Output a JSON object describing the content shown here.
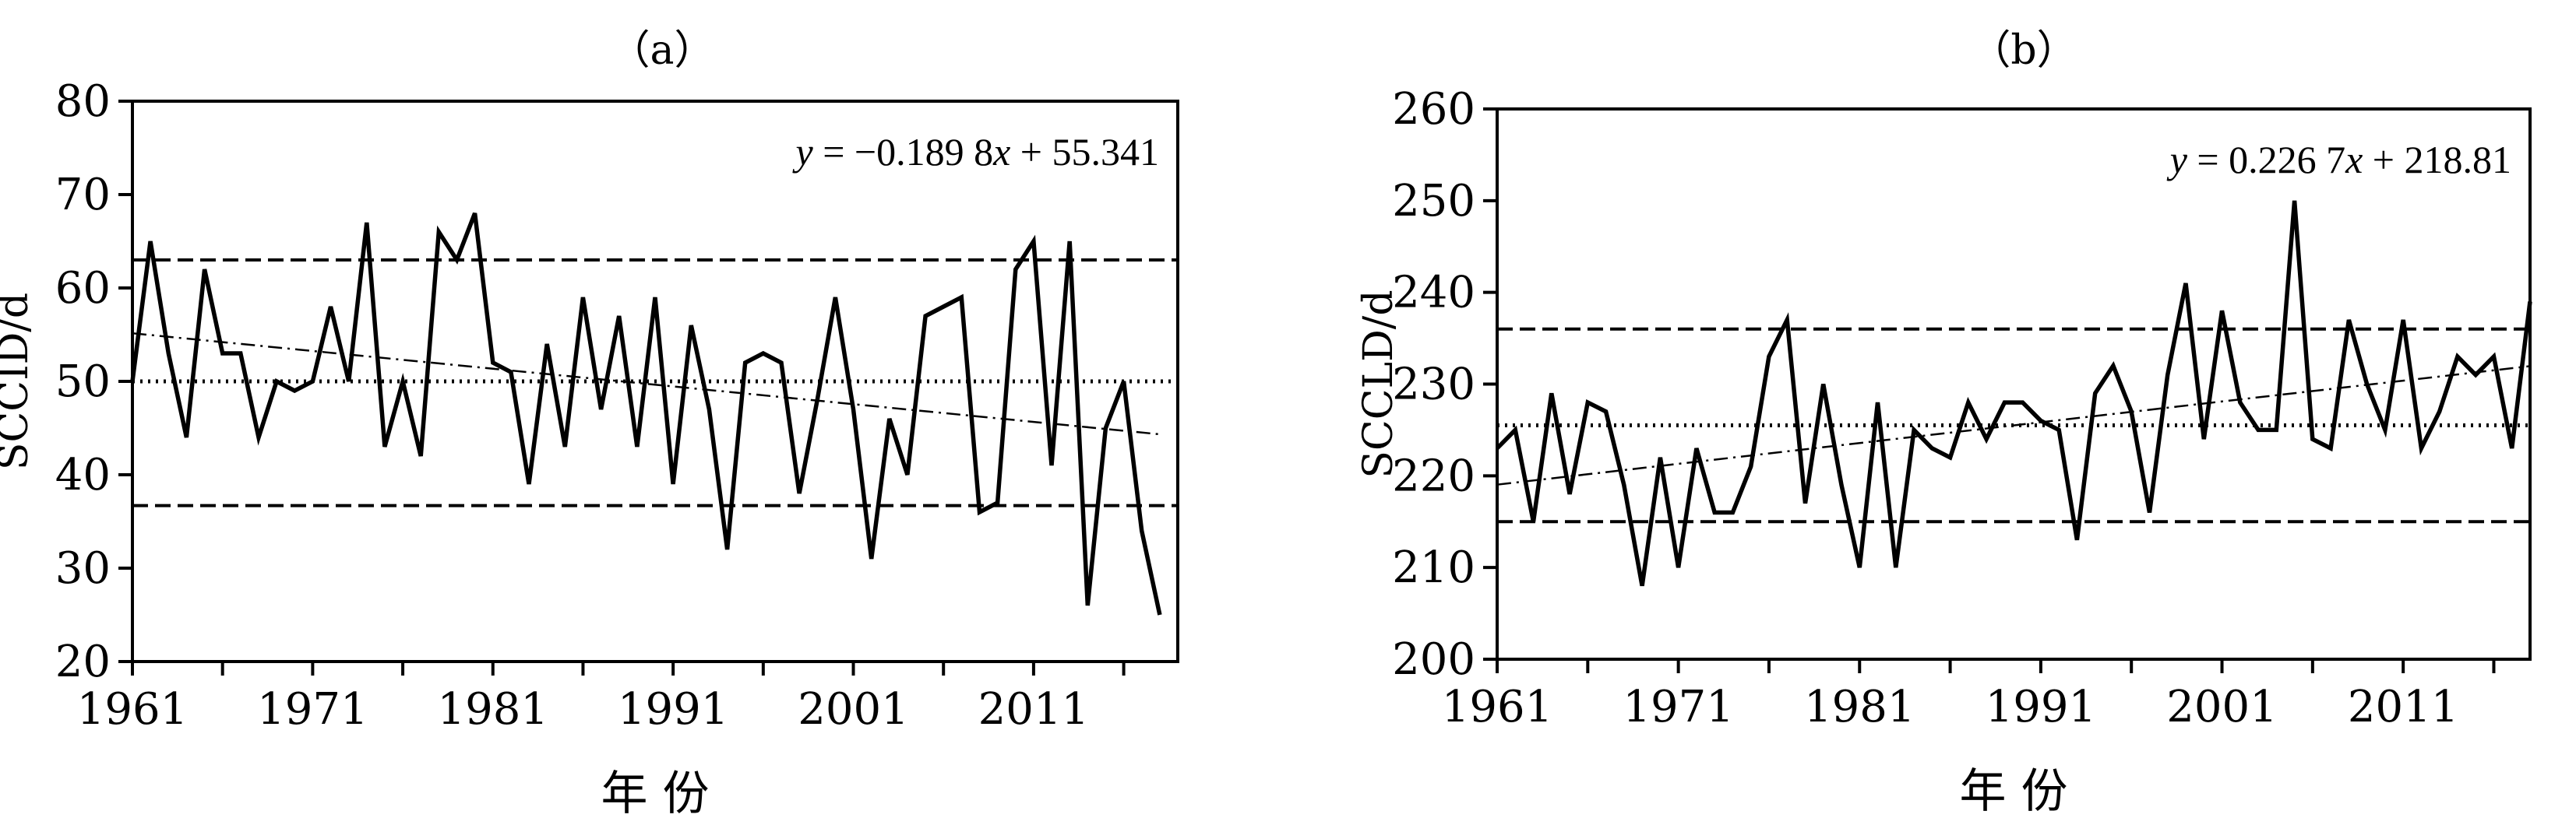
{
  "chart_data": [
    {
      "type": "line",
      "panel_label": "（a）",
      "ylabel": "SCCID/d",
      "xlabel": "年 份",
      "equation_prefix": "y",
      "equation_rest": " = −0.189 8",
      "equation_x": "x",
      "equation_tail": " + 55.341",
      "xlim": [
        1961,
        2019
      ],
      "ylim": [
        20,
        80
      ],
      "yticks": [
        20,
        30,
        40,
        50,
        60,
        70,
        80
      ],
      "xtick_labels": [
        "1961",
        "1971",
        "1981",
        "1991",
        "2001",
        "2011"
      ],
      "xticks": [
        1961,
        1971,
        1981,
        1991,
        2001,
        2011
      ],
      "minor_xticks": [
        1966,
        1976,
        1986,
        1996,
        2006,
        2016
      ],
      "mean": 50.0,
      "upper": 63.0,
      "lower": 36.7,
      "trend": {
        "slope": -0.1898,
        "intercept": 55.341
      },
      "x": [
        1961,
        1962,
        1963,
        1964,
        1965,
        1966,
        1967,
        1968,
        1969,
        1970,
        1971,
        1972,
        1973,
        1974,
        1975,
        1976,
        1977,
        1978,
        1979,
        1980,
        1981,
        1982,
        1983,
        1984,
        1985,
        1986,
        1987,
        1988,
        1989,
        1990,
        1991,
        1992,
        1993,
        1994,
        1995,
        1996,
        1997,
        1998,
        1999,
        2000,
        2001,
        2002,
        2003,
        2004,
        2005,
        2006,
        2007,
        2008,
        2009,
        2010,
        2011,
        2012,
        2013,
        2014,
        2015,
        2016,
        2017,
        2018
      ],
      "values": [
        50,
        65,
        53,
        44,
        62,
        53,
        53,
        44,
        50,
        49,
        50,
        58,
        50,
        67,
        43,
        50,
        42,
        66,
        63,
        68,
        52,
        51,
        39,
        54,
        43,
        59,
        47,
        57,
        43,
        59,
        39,
        56,
        47,
        32,
        52,
        53,
        52,
        38,
        48,
        59,
        47,
        31,
        46,
        40,
        57,
        58,
        59,
        36,
        37,
        62,
        65,
        41,
        65,
        26,
        45,
        50,
        34,
        25
      ]
    },
    {
      "type": "line",
      "panel_label": "（b）",
      "ylabel": "SCCLD/d",
      "xlabel": "年 份",
      "equation_prefix": "y",
      "equation_rest": " = 0.226 7",
      "equation_x": "x",
      "equation_tail": " + 218.81",
      "xlim": [
        1961,
        2018
      ],
      "ylim": [
        200,
        260
      ],
      "yticks": [
        200,
        210,
        220,
        230,
        240,
        250,
        260
      ],
      "xtick_labels": [
        "1961",
        "1971",
        "1981",
        "1991",
        "2001",
        "2011"
      ],
      "xticks": [
        1961,
        1971,
        1981,
        1991,
        2001,
        2011
      ],
      "minor_xticks": [
        1966,
        1976,
        1986,
        1996,
        2006,
        2016
      ],
      "mean": 225.5,
      "upper": 236.0,
      "lower": 215.0,
      "trend": {
        "slope": 0.2267,
        "intercept": 218.81
      },
      "x": [
        1961,
        1962,
        1963,
        1964,
        1965,
        1966,
        1967,
        1968,
        1969,
        1970,
        1971,
        1972,
        1973,
        1974,
        1975,
        1976,
        1977,
        1978,
        1979,
        1980,
        1981,
        1982,
        1983,
        1984,
        1985,
        1986,
        1987,
        1988,
        1989,
        1990,
        1991,
        1992,
        1993,
        1994,
        1995,
        1996,
        1997,
        1998,
        1999,
        2000,
        2001,
        2002,
        2003,
        2004,
        2005,
        2006,
        2007,
        2008,
        2009,
        2010,
        2011,
        2012,
        2013,
        2014,
        2015,
        2016,
        2017,
        2018
      ],
      "values": [
        223,
        225,
        215,
        229,
        218,
        228,
        227,
        219,
        208,
        222,
        210,
        223,
        216,
        216,
        221,
        233,
        237,
        217,
        230,
        219,
        210,
        228,
        210,
        225,
        223,
        222,
        228,
        224,
        228,
        228,
        226,
        225,
        213,
        229,
        232,
        227,
        216,
        231,
        241,
        224,
        238,
        228,
        225,
        225,
        250,
        224,
        223,
        237,
        230,
        225,
        237,
        223,
        227,
        233,
        231,
        233,
        223,
        239
      ]
    }
  ]
}
